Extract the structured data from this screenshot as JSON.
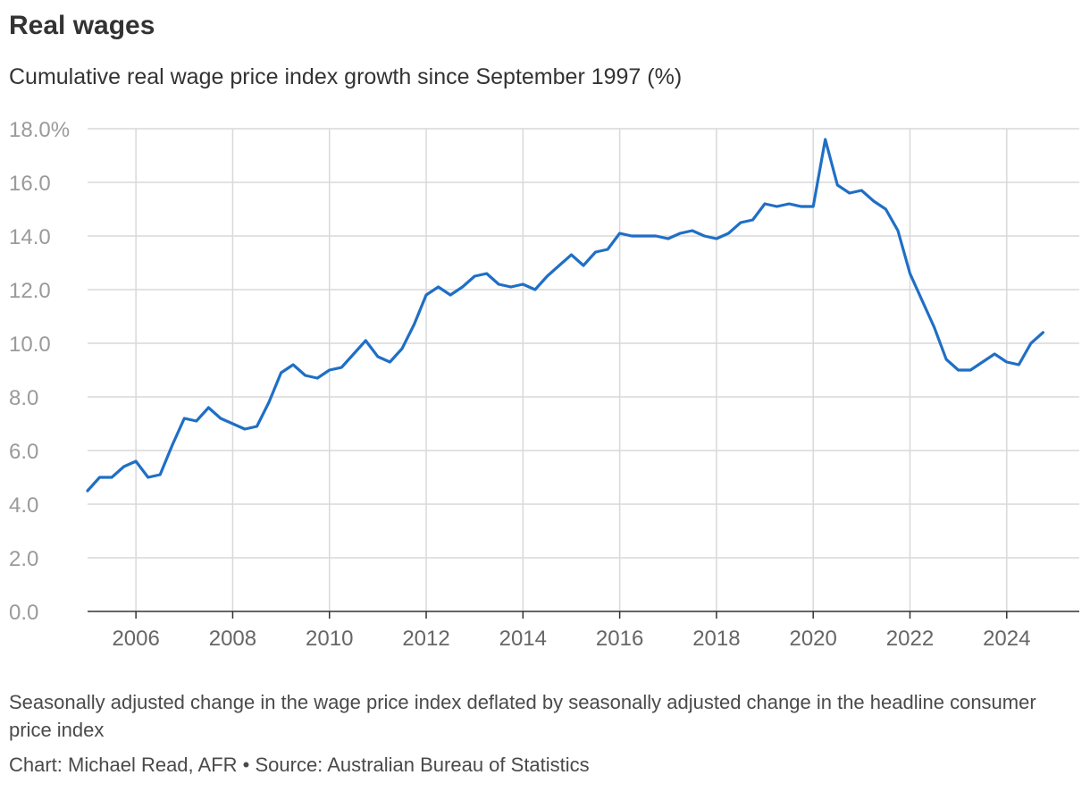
{
  "chart_data": {
    "type": "line",
    "title": "Real wages",
    "subtitle": "Cumulative real wage price index growth since September 1997 (%)",
    "xlabel": "",
    "ylabel": "",
    "ylim": [
      0,
      18
    ],
    "xlim": [
      2005,
      2025.5
    ],
    "y_ticks": [
      {
        "value": 0,
        "label": "0.0"
      },
      {
        "value": 2,
        "label": "2.0"
      },
      {
        "value": 4,
        "label": "4.0"
      },
      {
        "value": 6,
        "label": "6.0"
      },
      {
        "value": 8,
        "label": "8.0"
      },
      {
        "value": 10,
        "label": "10.0"
      },
      {
        "value": 12,
        "label": "12.0"
      },
      {
        "value": 14,
        "label": "14.0"
      },
      {
        "value": 16,
        "label": "16.0"
      },
      {
        "value": 18,
        "label": "18.0%"
      }
    ],
    "x_ticks": [
      {
        "value": 2006,
        "label": "2006"
      },
      {
        "value": 2008,
        "label": "2008"
      },
      {
        "value": 2010,
        "label": "2010"
      },
      {
        "value": 2012,
        "label": "2012"
      },
      {
        "value": 2014,
        "label": "2014"
      },
      {
        "value": 2016,
        "label": "2016"
      },
      {
        "value": 2018,
        "label": "2018"
      },
      {
        "value": 2020,
        "label": "2020"
      },
      {
        "value": 2022,
        "label": "2022"
      },
      {
        "value": 2024,
        "label": "2024"
      }
    ],
    "grid": true,
    "line_color": "#1f6fc5",
    "series": [
      {
        "x": [
          2005.0,
          2005.25,
          2005.5,
          2005.75,
          2006.0,
          2006.25,
          2006.5,
          2006.75,
          2007.0,
          2007.25,
          2007.5,
          2007.75,
          2008.0,
          2008.25,
          2008.5,
          2008.75,
          2009.0,
          2009.25,
          2009.5,
          2009.75,
          2010.0,
          2010.25,
          2010.5,
          2010.75,
          2011.0,
          2011.25,
          2011.5,
          2011.75,
          2012.0,
          2012.25,
          2012.5,
          2012.75,
          2013.0,
          2013.25,
          2013.5,
          2013.75,
          2014.0,
          2014.25,
          2014.5,
          2014.75,
          2015.0,
          2015.25,
          2015.5,
          2015.75,
          2016.0,
          2016.25,
          2016.5,
          2016.75,
          2017.0,
          2017.25,
          2017.5,
          2017.75,
          2018.0,
          2018.25,
          2018.5,
          2018.75,
          2019.0,
          2019.25,
          2019.5,
          2019.75,
          2020.0,
          2020.25,
          2020.5,
          2020.75,
          2021.0,
          2021.25,
          2021.5,
          2021.75,
          2022.0,
          2022.25,
          2022.5,
          2022.75,
          2023.0,
          2023.25,
          2023.5,
          2023.75,
          2024.0,
          2024.25,
          2024.5,
          2024.75
        ],
        "values": [
          4.5,
          5.0,
          5.0,
          5.4,
          5.6,
          5.0,
          5.1,
          6.2,
          7.2,
          7.1,
          7.6,
          7.2,
          7.0,
          6.8,
          6.9,
          7.8,
          8.9,
          9.2,
          8.8,
          8.7,
          9.0,
          9.1,
          9.6,
          10.1,
          9.5,
          9.3,
          9.8,
          10.7,
          11.8,
          12.1,
          11.8,
          12.1,
          12.5,
          12.6,
          12.2,
          12.1,
          12.2,
          12.0,
          12.5,
          12.9,
          13.3,
          12.9,
          13.4,
          13.5,
          14.1,
          14.0,
          14.0,
          14.0,
          13.9,
          14.1,
          14.2,
          14.0,
          13.9,
          14.1,
          14.5,
          14.6,
          15.2,
          15.1,
          15.2,
          15.1,
          15.1,
          17.6,
          15.9,
          15.6,
          15.7,
          15.3,
          15.0,
          14.2,
          12.6,
          11.6,
          10.6,
          9.4,
          9.0,
          9.0,
          9.3,
          9.6,
          9.3,
          9.2,
          10.0,
          10.4
        ]
      }
    ]
  },
  "footer": {
    "note": "Seasonally adjusted change in the wage price index deflated by seasonally adjusted change in the headline consumer price index",
    "credit": "Chart: Michael Read, AFR • Source: Australian Bureau of Statistics"
  }
}
